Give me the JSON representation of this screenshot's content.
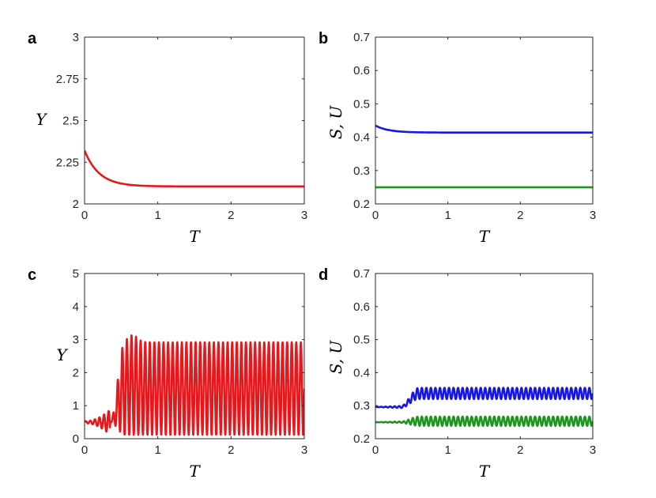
{
  "chart_data": [
    {
      "panel": "a",
      "type": "line",
      "xlabel": "T",
      "ylabel": "Y",
      "xlim": [
        0,
        3
      ],
      "ylim": [
        2,
        3
      ],
      "xticks": [
        "0",
        "1",
        "2",
        "3"
      ],
      "yticks": [
        "2",
        "2.25",
        "2.5",
        "2.75",
        "3"
      ],
      "series": [
        {
          "color": "#e8171c",
          "shape": "decay",
          "start": 2.32,
          "end": 2.105,
          "tau": 0.2,
          "x": [
            0,
            0.1,
            0.2,
            0.3,
            0.5,
            0.75,
            1,
            1.5,
            2,
            2.5,
            3
          ],
          "values": [
            2.32,
            2.24,
            2.19,
            2.155,
            2.12,
            2.107,
            2.105,
            2.105,
            2.105,
            2.105,
            2.105
          ]
        }
      ]
    },
    {
      "panel": "b",
      "type": "line",
      "xlabel": "T",
      "ylabel": "S, U",
      "xlim": [
        0,
        3
      ],
      "ylim": [
        0.2,
        0.7
      ],
      "xticks": [
        "0",
        "1",
        "2",
        "3"
      ],
      "yticks": [
        "0.2",
        "0.3",
        "0.4",
        "0.5",
        "0.6",
        "0.7"
      ],
      "series": [
        {
          "color": "#1616e6",
          "shape": "decay",
          "start": 0.435,
          "end": 0.414,
          "tau": 0.18,
          "x": [
            0,
            0.25,
            0.5,
            1,
            2,
            3
          ],
          "values": [
            0.435,
            0.42,
            0.416,
            0.414,
            0.414,
            0.414
          ]
        },
        {
          "color": "#1c961c",
          "shape": "flat",
          "start": 0.25,
          "end": 0.25,
          "x": [
            0,
            1,
            2,
            3
          ],
          "values": [
            0.25,
            0.25,
            0.25,
            0.25
          ]
        }
      ]
    },
    {
      "panel": "c",
      "type": "line",
      "xlabel": "T",
      "ylabel": "Y",
      "xlim": [
        0,
        3
      ],
      "ylim": [
        0,
        5
      ],
      "xticks": [
        "0",
        "1",
        "2",
        "3"
      ],
      "yticks": [
        "0",
        "1",
        "2",
        "3",
        "4",
        "5"
      ],
      "series": [
        {
          "color": "#e8171c",
          "shape": "growing-oscillation",
          "period": 0.0625,
          "onset": 0.35,
          "rise": 0.2,
          "low": 0.5,
          "low_end": 0.12,
          "high": 2.92,
          "overshoot": 3.14,
          "x": [
            0,
            0.3,
            0.45,
            0.5,
            0.6,
            0.65,
            1,
            2,
            3
          ],
          "values": [
            0.5,
            0.7,
            1.8,
            2.7,
            3.05,
            3.14,
            2.92,
            2.92,
            2.92
          ]
        }
      ]
    },
    {
      "panel": "d",
      "type": "line",
      "xlabel": "T",
      "ylabel": "S, U",
      "xlim": [
        0,
        3
      ],
      "ylim": [
        0.2,
        0.7
      ],
      "xticks": [
        "0",
        "1",
        "2",
        "3"
      ],
      "yticks": [
        "0.2",
        "0.3",
        "0.4",
        "0.5",
        "0.6",
        "0.7"
      ],
      "series": [
        {
          "color": "#1616e6",
          "shape": "shifted-oscillation",
          "period": 0.0625,
          "onset": 0.35,
          "rise": 0.25,
          "start": 0.296,
          "end": 0.337,
          "amp_start": 0.003,
          "amp_end": 0.017,
          "x": [
            0,
            0.3,
            0.5,
            0.7,
            1,
            2,
            3
          ],
          "values": [
            0.296,
            0.3,
            0.325,
            0.337,
            0.337,
            0.337,
            0.337
          ]
        },
        {
          "color": "#1c961c",
          "shape": "shifted-oscillation",
          "period": 0.0625,
          "onset": 0.35,
          "rise": 0.25,
          "start": 0.25,
          "end": 0.253,
          "amp_start": 0.002,
          "amp_end": 0.014,
          "x": [
            0,
            0.3,
            0.5,
            0.7,
            1,
            2,
            3
          ],
          "values": [
            0.25,
            0.251,
            0.253,
            0.253,
            0.253,
            0.253,
            0.253
          ]
        }
      ]
    }
  ]
}
